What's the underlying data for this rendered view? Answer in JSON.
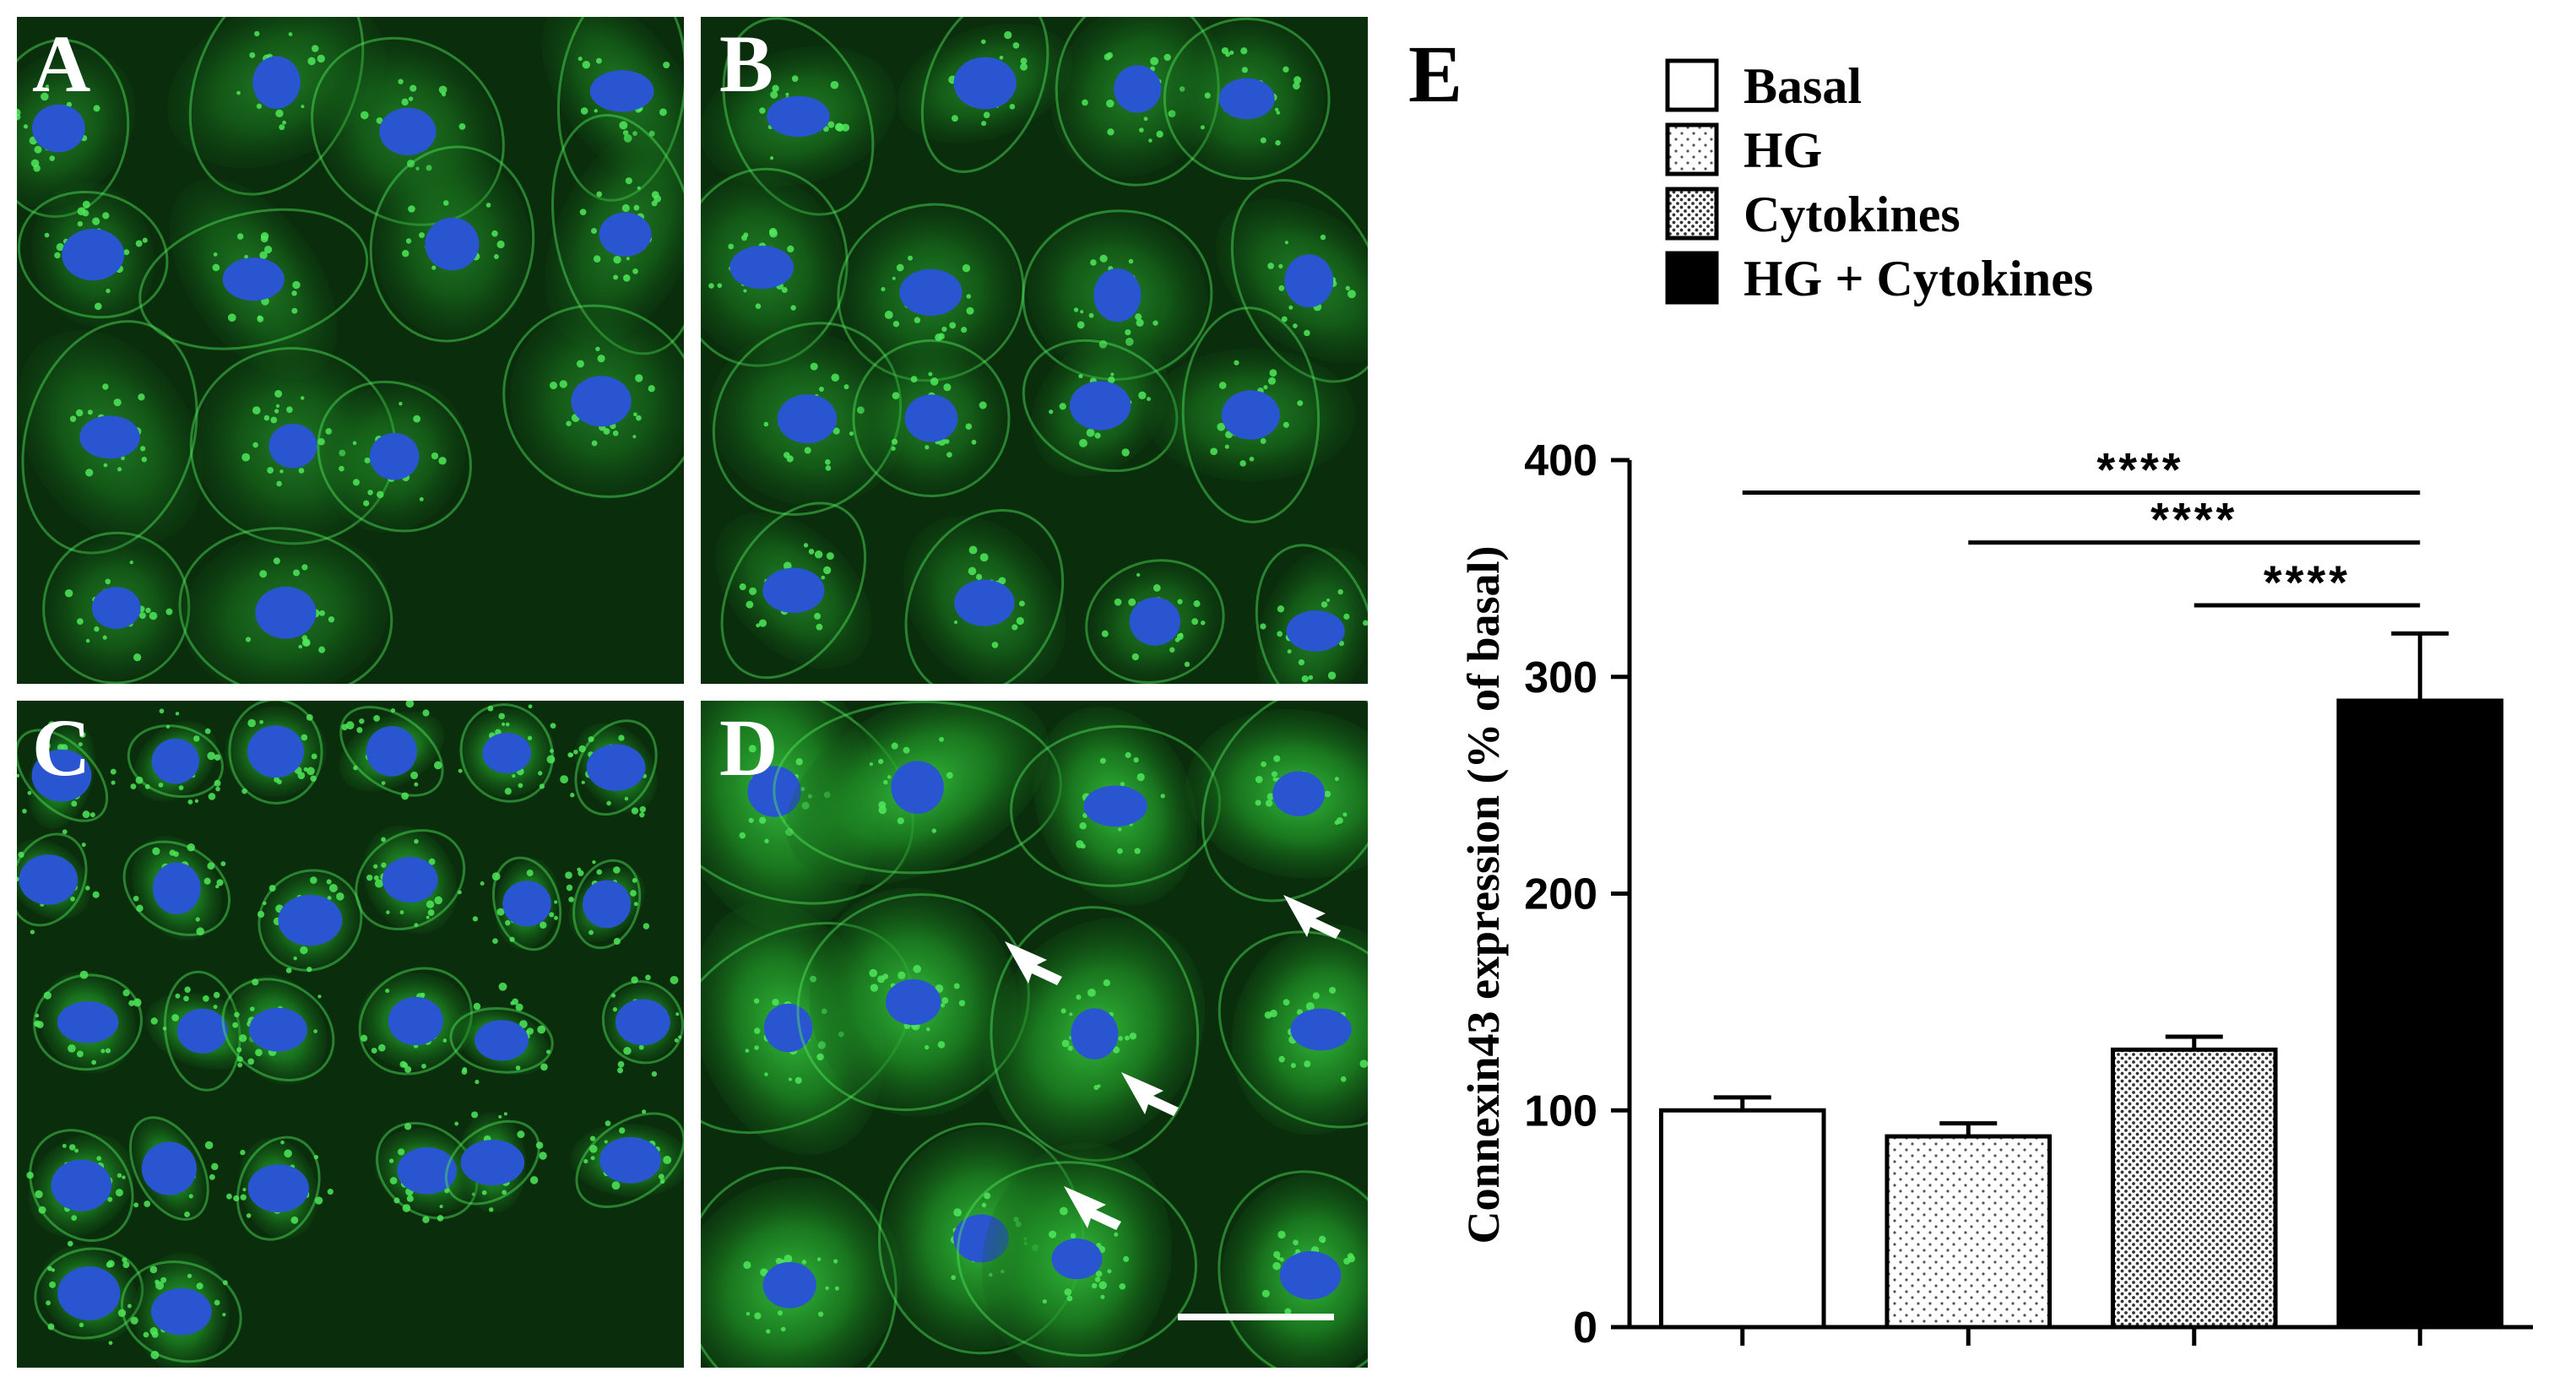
{
  "panels": [
    {
      "letter": "A"
    },
    {
      "letter": "B"
    },
    {
      "letter": "C"
    },
    {
      "letter": "D"
    }
  ],
  "panel_e_letter": "E",
  "colors": {
    "background": "#0a2e0c",
    "cytoplasm": "#1f8f25",
    "puncta": "#4fe85a",
    "nucleus": "#2a55d0",
    "arrow": "#ffffff"
  },
  "chart_data": {
    "type": "bar",
    "categories": [
      "Basal",
      "HG",
      "Cytokines",
      "HG + Cytokines"
    ],
    "values": [
      100,
      88,
      128,
      289
    ],
    "errors": [
      6,
      6,
      6,
      31
    ],
    "patterns": [
      "white",
      "sparse-dots",
      "dense-dots",
      "black"
    ],
    "ylabel": "Connexin43 expression (% of basal)",
    "ylim": [
      0,
      400
    ],
    "yticks": [
      0,
      100,
      200,
      300,
      400
    ],
    "legend": [
      "Basal",
      "HG",
      "Cytokines",
      "HG + Cytokines"
    ],
    "legend_position": "top",
    "significance": [
      {
        "from": "Basal",
        "to": "HG + Cytokines",
        "label": "****"
      },
      {
        "from": "HG",
        "to": "HG + Cytokines",
        "label": "****"
      },
      {
        "from": "Cytokines",
        "to": "HG + Cytokines",
        "label": "****"
      }
    ]
  }
}
